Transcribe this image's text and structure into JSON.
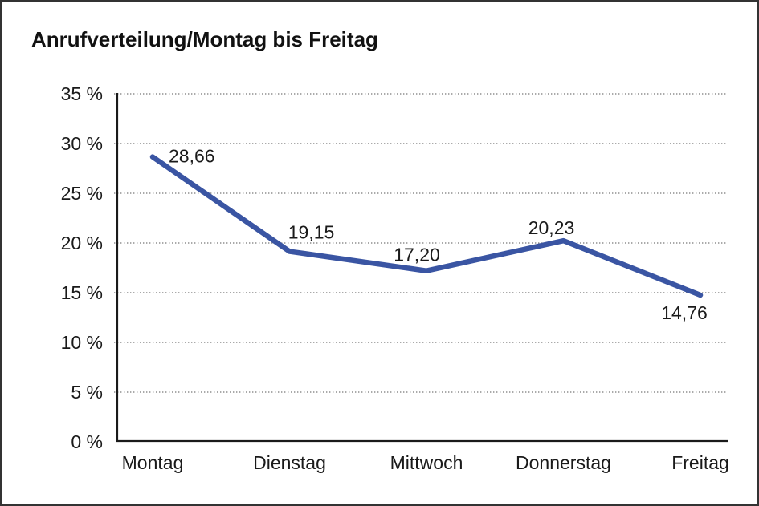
{
  "window": {
    "background": "#ffffff",
    "border_color": "#333333"
  },
  "chart_data": {
    "type": "line",
    "title": "Anrufverteilung/Montag bis Freitag",
    "categories": [
      "Montag",
      "Dienstag",
      "Mittwoch",
      "Donnerstag",
      "Freitag"
    ],
    "values": [
      28.66,
      19.15,
      17.2,
      20.23,
      14.76
    ],
    "value_labels": [
      "28,66",
      "19,15",
      "17,20",
      "20,23",
      "14,76"
    ],
    "series_name": "Anrufverteilung",
    "xlabel": "",
    "ylabel": "",
    "ylim": [
      0,
      35
    ],
    "ytick_step": 5,
    "ytick_labels": [
      "0 %",
      "5 %",
      "10 %",
      "15 %",
      "20 %",
      "25 %",
      "30 %",
      "35 %"
    ],
    "grid": "horizontal-dotted",
    "legend": "none",
    "line_color": "#3A55A3",
    "grid_color": "#777777",
    "axis_color": "#1a1a1a",
    "decimal_separator": ","
  }
}
